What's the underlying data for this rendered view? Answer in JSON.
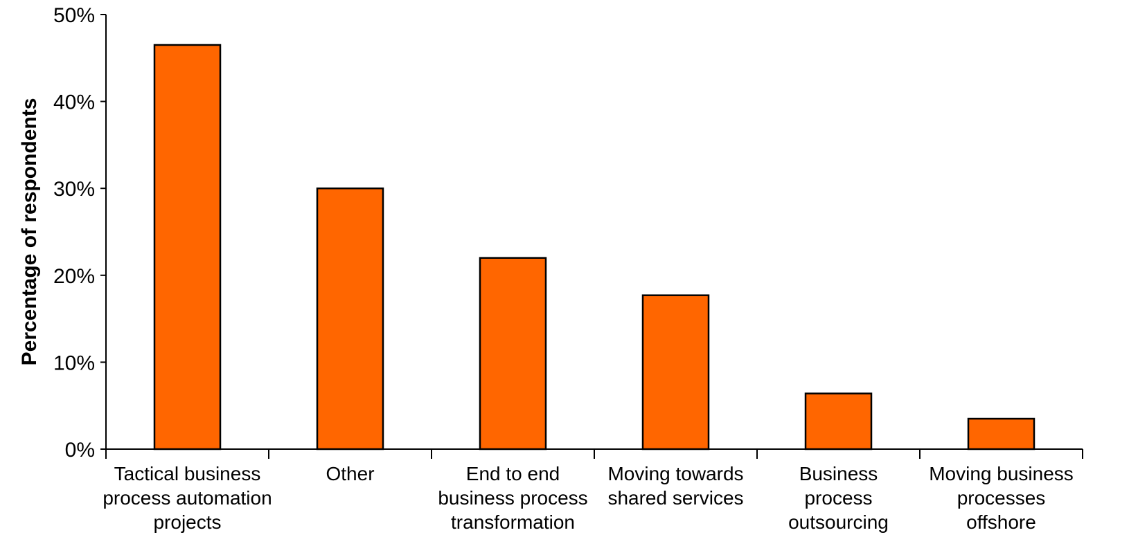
{
  "chart_data": {
    "type": "bar",
    "ylabel": "Percentage of respondents",
    "ylim": [
      0,
      50
    ],
    "yticks": [
      0,
      10,
      20,
      30,
      40,
      50
    ],
    "ytick_labels": [
      "0%",
      "10%",
      "20%",
      "30%",
      "40%",
      "50%"
    ],
    "categories": [
      [
        "Tactical business",
        "process automation",
        "projects"
      ],
      [
        "Other"
      ],
      [
        "End to end",
        "business process",
        "transformation"
      ],
      [
        "Moving towards",
        "shared services"
      ],
      [
        "Business",
        "process",
        "outsourcing"
      ],
      [
        "Moving business",
        "processes",
        "offshore"
      ]
    ],
    "values": [
      46.5,
      30,
      22,
      17.7,
      6.4,
      3.5
    ],
    "grid": false,
    "bar_color": "#FF6600",
    "bar_edge_color": "#000000"
  }
}
